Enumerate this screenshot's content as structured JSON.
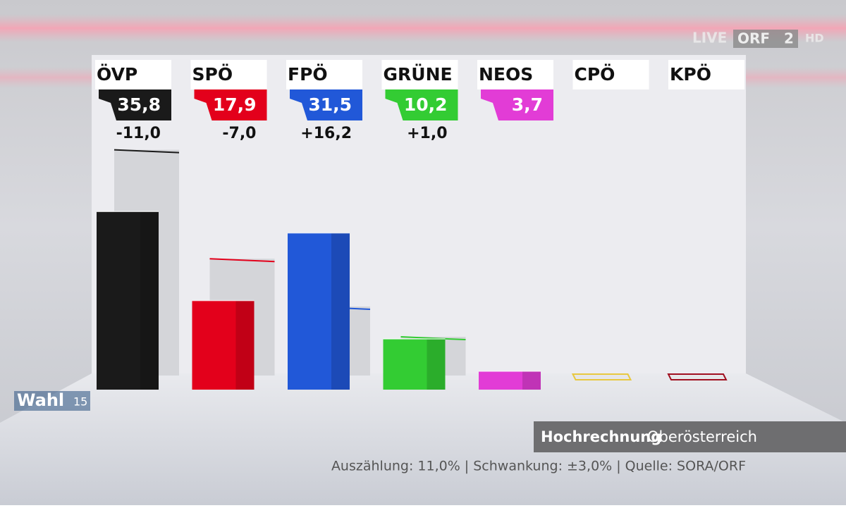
{
  "chart_data": {
    "type": "bar",
    "categories": [
      "ÖVP",
      "SPÖ",
      "FPÖ",
      "GRÜNE",
      "NEOS",
      "CPÖ",
      "KPÖ"
    ],
    "values": [
      35.8,
      17.9,
      31.5,
      10.2,
      3.7,
      null,
      null
    ],
    "value_labels": [
      "35,8",
      "17,9",
      "31,5",
      "10,2",
      "3,7",
      null,
      null
    ],
    "changes": [
      -11.0,
      -7.0,
      16.2,
      1.0,
      null,
      null,
      null
    ],
    "change_labels": [
      "-11,0",
      "-7,0",
      "+16,2",
      "+1,0",
      null,
      null,
      null
    ],
    "previous": [
      46.8,
      24.9,
      15.3,
      9.2,
      null,
      null,
      null
    ],
    "colors": [
      "#1a1a1a",
      "#e3001b",
      "#2158d8",
      "#33cc33",
      "#e23cd6",
      "#e8c840",
      "#a01020"
    ],
    "ylim": [
      0,
      50
    ]
  },
  "logo": {
    "live": "LIVE",
    "channel": "ORF",
    "number": "2",
    "hd": "HD"
  },
  "badge": {
    "text": "Wahl",
    "year": "15"
  },
  "caption": {
    "title": "Hochrechnung",
    "region": "Oberösterreich",
    "note": "Auszählung: 11,0% | Schwankung: ±3,0% | Quelle: SORA/ORF"
  }
}
